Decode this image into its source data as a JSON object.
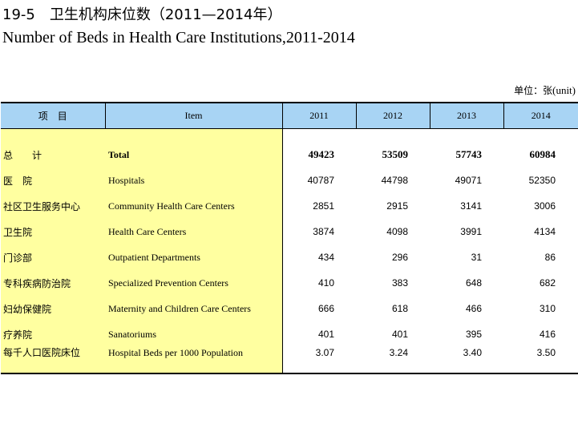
{
  "title": {
    "chinese": "19-5　卫生机构床位数（2011—2014年）",
    "english": "Number of Beds in Health Care Institutions,2011-2014"
  },
  "unit": {
    "chinese": "单位：张",
    "english": "(unit)"
  },
  "header": {
    "item_cn": "项　目",
    "item_en": "Item",
    "years": [
      "2011",
      "2012",
      "2013",
      "2014"
    ]
  },
  "rows": [
    {
      "name_cn": "总　　计",
      "name_en": "Total",
      "values": [
        "49423",
        "53509",
        "57743",
        "60984"
      ]
    },
    {
      "name_cn": "医　院",
      "name_en": "Hospitals",
      "values": [
        "40787",
        "44798",
        "49071",
        "52350"
      ]
    },
    {
      "name_cn": "社区卫生服务中心",
      "name_en": "Community Health Care Centers",
      "values": [
        "2851",
        "2915",
        "3141",
        "3006"
      ]
    },
    {
      "name_cn": "卫生院",
      "name_en": "Health Care Centers",
      "values": [
        "3874",
        "4098",
        "3991",
        "4134"
      ]
    },
    {
      "name_cn": "门诊部",
      "name_en": "Outpatient Departments",
      "values": [
        "434",
        "296",
        "31",
        "86"
      ]
    },
    {
      "name_cn": "专科疾病防治院",
      "name_en": "Specialized Prevention  Centers",
      "values": [
        "410",
        "383",
        "648",
        "682"
      ]
    },
    {
      "name_cn": "妇幼保健院",
      "name_en": "Maternity and Children Care Centers",
      "values": [
        "666",
        "618",
        "466",
        "310"
      ]
    },
    {
      "name_cn": "疗养院",
      "name_en": "Sanatoriums",
      "values": [
        "401",
        "401",
        "395",
        "416"
      ]
    },
    {
      "name_cn": "每千人口医院床位",
      "name_en": "Hospital Beds per 1000 Population",
      "values": [
        "3.07",
        "3.24",
        "3.40",
        "3.50"
      ]
    }
  ],
  "colors": {
    "header_bg": "#a8d4f4",
    "item_bg": "#ffffa0"
  }
}
